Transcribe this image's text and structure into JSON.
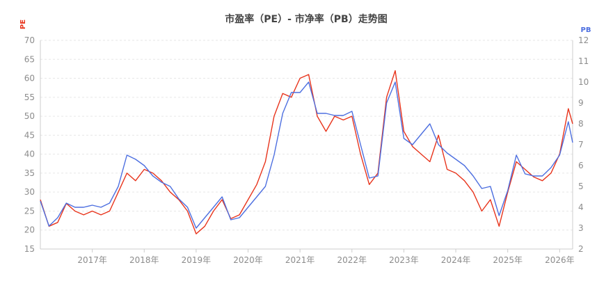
{
  "chart_data": {
    "type": "line",
    "title": "市盈率（PE）- 市净率（PB）走势图",
    "x_ticks": [
      "2017年",
      "2018年",
      "2019年",
      "2020年",
      "2021年",
      "2022年",
      "2023年",
      "2024年",
      "2025年",
      "2026年"
    ],
    "x_range": [
      "2016-01",
      "2026-04"
    ],
    "left_axis": {
      "label": "PE",
      "ticks": [
        15,
        20,
        25,
        30,
        35,
        40,
        45,
        50,
        55,
        60,
        65,
        70
      ],
      "ylim": [
        15,
        70
      ],
      "color": "#e8341c"
    },
    "right_axis": {
      "label": "PB",
      "ticks": [
        2,
        3,
        4,
        5,
        6,
        7,
        8,
        9,
        10,
        11,
        12
      ],
      "ylim": [
        2,
        12
      ],
      "color": "#4d6fe0"
    },
    "grid": "horizontal dashed",
    "series": [
      {
        "name": "PE",
        "axis": "left",
        "color": "#e8341c",
        "x": [
          "2016-01",
          "2016-03",
          "2016-05",
          "2016-07",
          "2016-09",
          "2016-11",
          "2017-01",
          "2017-03",
          "2017-05",
          "2017-07",
          "2017-09",
          "2017-11",
          "2018-01",
          "2018-03",
          "2018-05",
          "2018-07",
          "2018-09",
          "2018-11",
          "2019-01",
          "2019-03",
          "2019-05",
          "2019-07",
          "2019-09",
          "2019-11",
          "2020-01",
          "2020-03",
          "2020-05",
          "2020-07",
          "2020-09",
          "2020-11",
          "2021-01",
          "2021-03",
          "2021-05",
          "2021-07",
          "2021-09",
          "2021-11",
          "2022-01",
          "2022-03",
          "2022-05",
          "2022-07",
          "2022-09",
          "2022-11",
          "2023-01",
          "2023-03",
          "2023-05",
          "2023-07",
          "2023-09",
          "2023-11",
          "2024-01",
          "2024-03",
          "2024-05",
          "2024-07",
          "2024-09",
          "2024-11",
          "2025-01",
          "2025-03",
          "2025-05",
          "2025-07",
          "2025-09",
          "2025-11",
          "2026-01",
          "2026-03",
          "2026-04"
        ],
        "values": [
          28,
          21,
          22,
          27,
          25,
          24,
          25,
          24,
          25,
          30,
          35,
          33,
          36,
          35,
          33,
          30,
          28,
          25,
          19,
          21,
          25,
          28,
          23,
          24,
          28,
          32,
          38,
          50,
          56,
          55,
          60,
          61,
          50,
          46,
          50,
          49,
          50,
          40,
          32,
          35,
          55,
          62,
          46,
          42,
          40,
          38,
          45,
          36,
          35,
          33,
          30,
          25,
          28,
          21,
          30,
          38,
          36,
          34,
          33,
          35,
          40,
          52,
          48
        ]
      },
      {
        "name": "PB",
        "axis": "right",
        "color": "#4d6fe0",
        "x": [
          "2016-01",
          "2016-03",
          "2016-05",
          "2016-07",
          "2016-09",
          "2016-11",
          "2017-01",
          "2017-03",
          "2017-05",
          "2017-07",
          "2017-09",
          "2017-11",
          "2018-01",
          "2018-03",
          "2018-05",
          "2018-07",
          "2018-09",
          "2018-11",
          "2019-01",
          "2019-03",
          "2019-05",
          "2019-07",
          "2019-09",
          "2019-11",
          "2020-01",
          "2020-03",
          "2020-05",
          "2020-07",
          "2020-09",
          "2020-11",
          "2021-01",
          "2021-03",
          "2021-05",
          "2021-07",
          "2021-09",
          "2021-11",
          "2022-01",
          "2022-03",
          "2022-05",
          "2022-07",
          "2022-09",
          "2022-11",
          "2023-01",
          "2023-03",
          "2023-05",
          "2023-07",
          "2023-09",
          "2023-11",
          "2024-01",
          "2024-03",
          "2024-05",
          "2024-07",
          "2024-09",
          "2024-11",
          "2025-01",
          "2025-03",
          "2025-05",
          "2025-07",
          "2025-09",
          "2025-11",
          "2026-01",
          "2026-03",
          "2026-04"
        ],
        "values": [
          4.3,
          3.1,
          3.5,
          4.2,
          4.0,
          4.0,
          4.1,
          4.0,
          4.2,
          5.0,
          6.5,
          6.3,
          6.0,
          5.5,
          5.2,
          5.0,
          4.4,
          4.0,
          3.0,
          3.5,
          4.0,
          4.5,
          3.4,
          3.5,
          4.0,
          4.5,
          5.0,
          6.5,
          8.5,
          9.5,
          9.5,
          10.0,
          8.5,
          8.5,
          8.4,
          8.4,
          8.6,
          7.0,
          5.4,
          5.5,
          9.0,
          10.0,
          7.3,
          7.0,
          7.5,
          8.0,
          7.0,
          6.6,
          6.3,
          6.0,
          5.5,
          4.9,
          5.0,
          3.6,
          4.8,
          6.5,
          5.6,
          5.5,
          5.5,
          5.9,
          6.5,
          8.1,
          7.1
        ]
      }
    ]
  }
}
